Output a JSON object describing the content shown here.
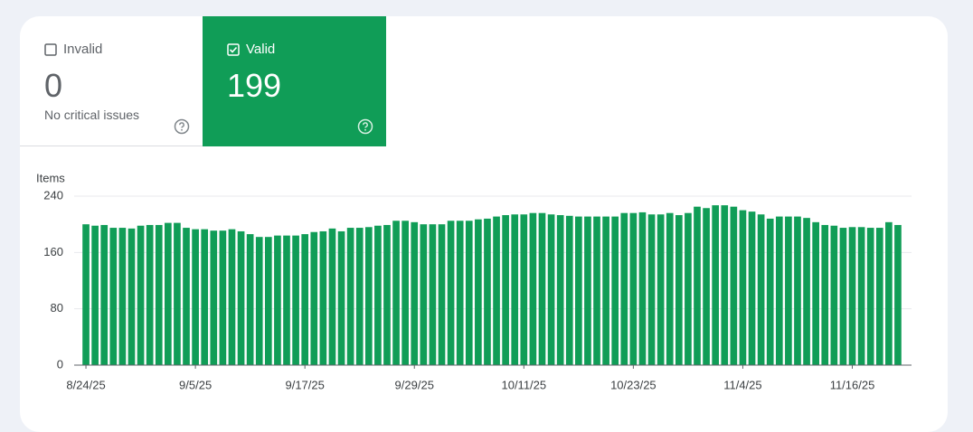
{
  "cards": {
    "invalid": {
      "label": "Invalid",
      "count": 0,
      "subtitle": "No critical issues"
    },
    "valid": {
      "label": "Valid",
      "count": 199
    }
  },
  "chart_data": {
    "type": "bar",
    "y_axis_label": "Items",
    "color": "#109d57",
    "categories": [
      "8/24/25",
      null,
      null,
      null,
      null,
      null,
      null,
      null,
      null,
      null,
      null,
      null,
      "9/5/25",
      null,
      null,
      null,
      null,
      null,
      null,
      null,
      null,
      null,
      null,
      null,
      "9/17/25",
      null,
      null,
      null,
      null,
      null,
      null,
      null,
      null,
      null,
      null,
      null,
      "9/29/25",
      null,
      null,
      null,
      null,
      null,
      null,
      null,
      null,
      null,
      null,
      null,
      "10/11/25",
      null,
      null,
      null,
      null,
      null,
      null,
      null,
      null,
      null,
      null,
      null,
      "10/23/25",
      null,
      null,
      null,
      null,
      null,
      null,
      null,
      null,
      null,
      null,
      null,
      "11/4/25",
      null,
      null,
      null,
      null,
      null,
      null,
      null,
      null,
      null,
      null,
      null,
      "11/16/25",
      null,
      null,
      null,
      null,
      null
    ],
    "values": [
      200,
      198,
      199,
      195,
      195,
      194,
      198,
      199,
      199,
      202,
      202,
      195,
      193,
      193,
      191,
      191,
      193,
      190,
      186,
      182,
      182,
      184,
      184,
      184,
      186,
      189,
      190,
      194,
      190,
      195,
      195,
      196,
      198,
      199,
      205,
      205,
      203,
      200,
      200,
      200,
      205,
      205,
      205,
      207,
      208,
      211,
      213,
      214,
      214,
      216,
      216,
      214,
      213,
      212,
      211,
      211,
      211,
      211,
      211,
      216,
      216,
      217,
      214,
      214,
      216,
      213,
      216,
      225,
      223,
      227,
      227,
      225,
      220,
      218,
      214,
      208,
      211,
      211,
      211,
      209,
      203,
      199,
      198,
      195,
      196,
      196,
      195,
      195,
      203,
      199
    ],
    "ylim": [
      0,
      240
    ],
    "yticks": [
      0,
      80,
      160,
      240
    ],
    "grid": true
  }
}
